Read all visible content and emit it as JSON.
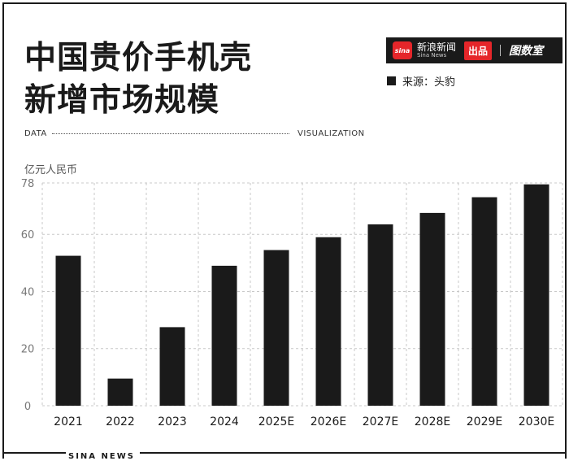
{
  "header": {
    "title_line1": "中国贵价手机壳",
    "title_line2": "新增市场规模",
    "brand_cn": "新浪新闻",
    "brand_en": "Sina News",
    "brand_logo": "sina",
    "brand_tag": "出品",
    "brand_tushi": "图数室",
    "source": "来源：头豹"
  },
  "labels": {
    "data": "DATA",
    "visualization": "VISUALIZATION",
    "unit": "亿元人民币",
    "footer": "SINA NEWS"
  },
  "colors": {
    "bar": "#1a1a1a",
    "accent": "#e5262a",
    "grid": "#c8c8c8"
  },
  "chart_data": {
    "type": "bar",
    "title": "中国贵价手机壳新增市场规模",
    "ylabel": "亿元人民币",
    "xlabel": "",
    "categories": [
      "2021",
      "2022",
      "2023",
      "2024",
      "2025E",
      "2026E",
      "2027E",
      "2028E",
      "2029E",
      "2030E"
    ],
    "values": [
      52.5,
      9.5,
      27.5,
      49,
      54.5,
      59,
      63.5,
      67.5,
      73,
      77.5
    ],
    "ylim": [
      0,
      78
    ],
    "yticks": [
      0,
      20,
      40,
      60,
      78
    ],
    "grid": true,
    "legend": "none"
  }
}
